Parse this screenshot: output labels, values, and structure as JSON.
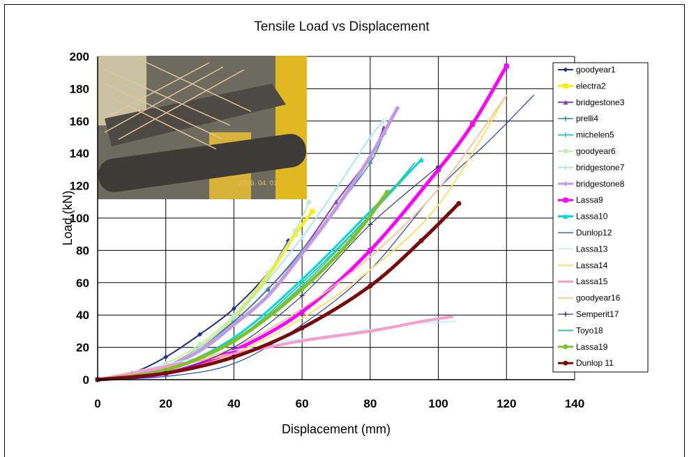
{
  "chart_data": {
    "type": "line",
    "title": "Tensile Load vs Displacement",
    "xlabel": "Displacement (mm)",
    "ylabel": "Load (kN)",
    "xlim": [
      0,
      140
    ],
    "ylim": [
      0,
      200
    ],
    "xticks": [
      "0",
      "20",
      "40",
      "60",
      "80",
      "100",
      "120",
      "140"
    ],
    "yticks": [
      "0",
      "20",
      "40",
      "60",
      "80",
      "100",
      "120",
      "140",
      "160",
      "180",
      "200"
    ],
    "grid": true,
    "legend_position": "right",
    "inset_photo_date": "2006. 04. 01",
    "series": [
      {
        "name": "goodyear1",
        "color": "#1f2f8f",
        "marker": "diamond",
        "width": 2,
        "points": [
          [
            0,
            0
          ],
          [
            10,
            4
          ],
          [
            20,
            14
          ],
          [
            30,
            28
          ],
          [
            40,
            44
          ],
          [
            50,
            66
          ],
          [
            56,
            86
          ]
        ]
      },
      {
        "name": "electra2",
        "color": "#ffee00",
        "marker": "square",
        "width": 4,
        "points": [
          [
            0,
            0
          ],
          [
            10,
            2
          ],
          [
            20,
            8
          ],
          [
            30,
            20
          ],
          [
            40,
            38
          ],
          [
            50,
            64
          ],
          [
            58,
            90
          ],
          [
            63,
            104
          ]
        ]
      },
      {
        "name": "bridgestone3",
        "color": "#8c3fa8",
        "marker": "triangle",
        "width": 2,
        "points": [
          [
            0,
            0
          ],
          [
            10,
            2
          ],
          [
            20,
            8
          ],
          [
            30,
            20
          ],
          [
            40,
            36
          ],
          [
            50,
            56
          ],
          [
            60,
            80
          ],
          [
            70,
            110
          ],
          [
            80,
            138
          ],
          [
            84,
            156
          ]
        ]
      },
      {
        "name": "prelli4",
        "color": "#2a8f8f",
        "marker": "cross",
        "width": 1.5,
        "points": [
          [
            0,
            0
          ],
          [
            10,
            2
          ],
          [
            20,
            8
          ],
          [
            30,
            20
          ],
          [
            40,
            36
          ],
          [
            50,
            56
          ],
          [
            60,
            80
          ],
          [
            70,
            106
          ],
          [
            80,
            134
          ],
          [
            84,
            152
          ]
        ]
      },
      {
        "name": "michelen5",
        "color": "#33c7c7",
        "marker": "star",
        "width": 2,
        "points": [
          [
            0,
            0
          ],
          [
            20,
            6
          ],
          [
            40,
            24
          ],
          [
            60,
            58
          ],
          [
            80,
            102
          ],
          [
            95,
            136
          ]
        ]
      },
      {
        "name": "goodyear6",
        "color": "#c6ecb6",
        "marker": "circle",
        "width": 2,
        "points": [
          [
            0,
            0
          ],
          [
            10,
            2
          ],
          [
            20,
            10
          ],
          [
            30,
            22
          ],
          [
            40,
            40
          ],
          [
            50,
            66
          ],
          [
            58,
            92
          ],
          [
            62,
            110
          ]
        ]
      },
      {
        "name": "bridgestone7",
        "color": "#a8e8f0",
        "marker": "plus",
        "width": 2,
        "points": [
          [
            0,
            0
          ],
          [
            10,
            2
          ],
          [
            20,
            8
          ],
          [
            30,
            20
          ],
          [
            40,
            38
          ],
          [
            50,
            62
          ],
          [
            60,
            88
          ],
          [
            70,
            118
          ],
          [
            80,
            150
          ],
          [
            84,
            160
          ]
        ]
      },
      {
        "name": "bridgestone8",
        "color": "#c09ae6",
        "marker": "diamond",
        "width": 5,
        "points": [
          [
            0,
            0
          ],
          [
            10,
            2
          ],
          [
            20,
            8
          ],
          [
            30,
            18
          ],
          [
            40,
            34
          ],
          [
            50,
            52
          ],
          [
            60,
            78
          ],
          [
            70,
            106
          ],
          [
            80,
            138
          ],
          [
            88,
            168
          ]
        ]
      },
      {
        "name": "Lassa9",
        "color": "#ff00ff",
        "marker": "square",
        "width": 5,
        "points": [
          [
            0,
            0
          ],
          [
            20,
            4
          ],
          [
            40,
            18
          ],
          [
            60,
            42
          ],
          [
            80,
            80
          ],
          [
            100,
            130
          ],
          [
            110,
            158
          ],
          [
            120,
            194
          ]
        ]
      },
      {
        "name": "Lassa10",
        "color": "#00d8e0",
        "marker": "triangle",
        "width": 3,
        "points": [
          [
            0,
            0
          ],
          [
            20,
            6
          ],
          [
            40,
            26
          ],
          [
            60,
            62
          ],
          [
            80,
            104
          ],
          [
            95,
            136
          ]
        ]
      },
      {
        "name": "Dunlop12",
        "color": "#1f3fd8",
        "marker": "none",
        "width": 1.2,
        "points": [
          [
            0,
            0
          ],
          [
            20,
            2
          ],
          [
            40,
            10
          ],
          [
            60,
            34
          ],
          [
            80,
            68
          ],
          [
            100,
            118
          ],
          [
            115,
            148
          ],
          [
            128,
            176
          ]
        ]
      },
      {
        "name": "Lassa13",
        "color": "#aef2fa",
        "marker": "none",
        "width": 1.5,
        "points": [
          [
            0,
            0
          ],
          [
            30,
            14
          ],
          [
            50,
            22
          ],
          [
            70,
            28
          ],
          [
            90,
            34
          ],
          [
            105,
            36
          ]
        ]
      },
      {
        "name": "Lassa14",
        "color": "#ffe066",
        "marker": "none",
        "width": 2,
        "points": [
          [
            0,
            0
          ],
          [
            20,
            4
          ],
          [
            40,
            16
          ],
          [
            60,
            38
          ],
          [
            80,
            68
          ],
          [
            100,
            108
          ],
          [
            120,
            176
          ]
        ]
      },
      {
        "name": "Lassa15",
        "color": "#ff99cc",
        "marker": "none",
        "width": 4,
        "points": [
          [
            0,
            0
          ],
          [
            20,
            8
          ],
          [
            40,
            16
          ],
          [
            60,
            24
          ],
          [
            80,
            30
          ],
          [
            95,
            36
          ],
          [
            104,
            39
          ]
        ]
      },
      {
        "name": "goodyear16",
        "color": "#f5c896",
        "marker": "none",
        "width": 2,
        "points": [
          [
            0,
            0
          ],
          [
            20,
            6
          ],
          [
            40,
            20
          ],
          [
            60,
            44
          ],
          [
            80,
            76
          ],
          [
            100,
            118
          ],
          [
            120,
            176
          ]
        ]
      },
      {
        "name": "Semperit17",
        "color": "#2c3f7a",
        "marker": "plus",
        "width": 1.2,
        "points": [
          [
            0,
            0
          ],
          [
            20,
            4
          ],
          [
            40,
            20
          ],
          [
            60,
            52
          ],
          [
            80,
            96
          ],
          [
            100,
            132
          ]
        ]
      },
      {
        "name": "Toyo18",
        "color": "#33c4b0",
        "marker": "none",
        "width": 2,
        "points": [
          [
            0,
            0
          ],
          [
            20,
            6
          ],
          [
            40,
            24
          ],
          [
            60,
            60
          ],
          [
            80,
            102
          ],
          [
            93,
            134
          ]
        ]
      },
      {
        "name": "Lassa19",
        "color": "#7cc228",
        "marker": "circle",
        "width": 5,
        "points": [
          [
            0,
            0
          ],
          [
            20,
            6
          ],
          [
            40,
            24
          ],
          [
            60,
            56
          ],
          [
            75,
            88
          ],
          [
            85,
            116
          ]
        ]
      },
      {
        "name": "Dunlop 11",
        "color": "#7a0a0a",
        "marker": "circle",
        "width": 5,
        "points": [
          [
            0,
            0
          ],
          [
            20,
            4
          ],
          [
            40,
            14
          ],
          [
            60,
            32
          ],
          [
            80,
            58
          ],
          [
            95,
            86
          ],
          [
            106,
            109
          ]
        ]
      }
    ]
  }
}
